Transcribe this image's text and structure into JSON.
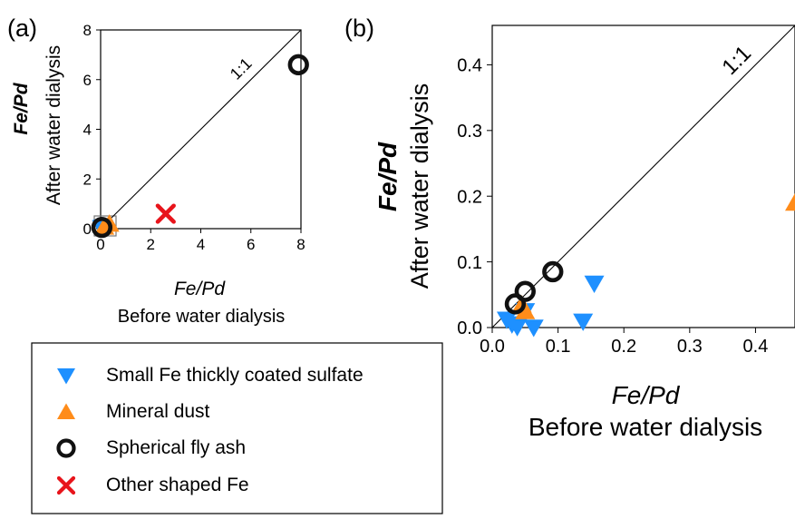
{
  "legend": {
    "items": [
      {
        "marker": "triangle-down",
        "color": "#1e90ff",
        "label": "Small Fe thickly coated sulfate"
      },
      {
        "marker": "triangle-up",
        "color": "#ff8c1a",
        "label": "Mineral dust"
      },
      {
        "marker": "circle",
        "color": "#111111",
        "label": "Spherical fly ash"
      },
      {
        "marker": "cross",
        "color": "#e8141b",
        "label": "Other shaped Fe"
      }
    ]
  },
  "chart_data": [
    {
      "panel": "(a)",
      "type": "scatter",
      "xlabel_italic": "Fe/Pd",
      "xlabel": "Before water dialysis",
      "ylabel_italic": "Fe/Pd",
      "ylabel": "After water dialysis",
      "xlim": [
        0,
        8
      ],
      "ylim": [
        0,
        8
      ],
      "xticks": [
        0,
        2,
        4,
        6,
        8
      ],
      "yticks": [
        0,
        2,
        4,
        6,
        8
      ],
      "reference_line": {
        "label": "1:1",
        "from": [
          0,
          0
        ],
        "to": [
          8,
          8
        ]
      },
      "series": [
        {
          "name": "Small Fe thickly coated sulfate",
          "marker": "triangle-down",
          "color": "#1e90ff",
          "points": [
            [
              0.05,
              0.02
            ],
            [
              0.1,
              0.05
            ]
          ]
        },
        {
          "name": "Mineral dust",
          "marker": "triangle-up",
          "color": "#ff8c1a",
          "points": [
            [
              0.35,
              0.2
            ],
            [
              0.15,
              0.08
            ]
          ]
        },
        {
          "name": "Spherical fly ash",
          "marker": "circle",
          "color": "#111111",
          "points": [
            [
              7.9,
              6.6
            ],
            [
              0.05,
              0.05
            ]
          ]
        },
        {
          "name": "Other shaped Fe",
          "marker": "cross",
          "color": "#e8141b",
          "points": [
            [
              2.6,
              0.6
            ]
          ]
        }
      ]
    },
    {
      "panel": "(b)",
      "type": "scatter",
      "xlabel_italic": "Fe/Pd",
      "xlabel": "Before water dialysis",
      "ylabel_italic": "Fe/Pd",
      "ylabel": "After water dialysis",
      "xlim": [
        0,
        0.46
      ],
      "ylim": [
        0,
        0.46
      ],
      "xticks": [
        "0.0",
        "0.1",
        "0.2",
        "0.3",
        "0.4"
      ],
      "yticks": [
        "0.0",
        "0.1",
        "0.2",
        "0.3",
        "0.4"
      ],
      "reference_line": {
        "label": "1:1",
        "from": [
          0,
          0
        ],
        "to": [
          0.46,
          0.46
        ]
      },
      "series": [
        {
          "name": "Small Fe thickly coated sulfate",
          "marker": "triangle-down",
          "color": "#1e90ff",
          "points": [
            [
              0.022,
              0.012
            ],
            [
              0.03,
              0.005
            ],
            [
              0.038,
              0.001
            ],
            [
              0.05,
              0.025
            ],
            [
              0.063,
              0.0
            ],
            [
              0.138,
              0.009
            ],
            [
              0.155,
              0.067
            ]
          ]
        },
        {
          "name": "Mineral dust",
          "marker": "triangle-up",
          "color": "#ff8c1a",
          "points": [
            [
              0.05,
              0.025
            ],
            [
              0.045,
              0.035
            ],
            [
              0.46,
              0.19
            ]
          ]
        },
        {
          "name": "Spherical fly ash",
          "marker": "circle",
          "color": "#111111",
          "points": [
            [
              0.035,
              0.036
            ],
            [
              0.05,
              0.055
            ],
            [
              0.092,
              0.085
            ]
          ]
        }
      ]
    }
  ]
}
